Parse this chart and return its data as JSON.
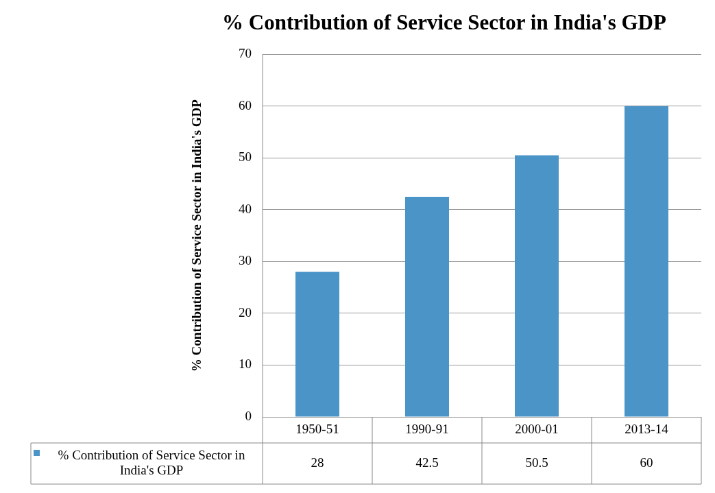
{
  "chart_data": {
    "type": "bar",
    "title": "% Contribution of Service Sector in India's GDP",
    "ylabel": "% Contribution of Service Sector in India's GDP",
    "categories": [
      "1950-51",
      "1990-91",
      "2000-01",
      "2013-14"
    ],
    "series": [
      {
        "name": "% Contribution of Service Sector in India's GDP",
        "color": "#4a94c8",
        "values": [
          28,
          42.5,
          50.5,
          60
        ]
      }
    ],
    "ylim": [
      0,
      70
    ],
    "yticks": [
      0,
      10,
      20,
      30,
      40,
      50,
      60,
      70
    ],
    "grid": "y",
    "legend": "bottom",
    "data_labels": true
  }
}
